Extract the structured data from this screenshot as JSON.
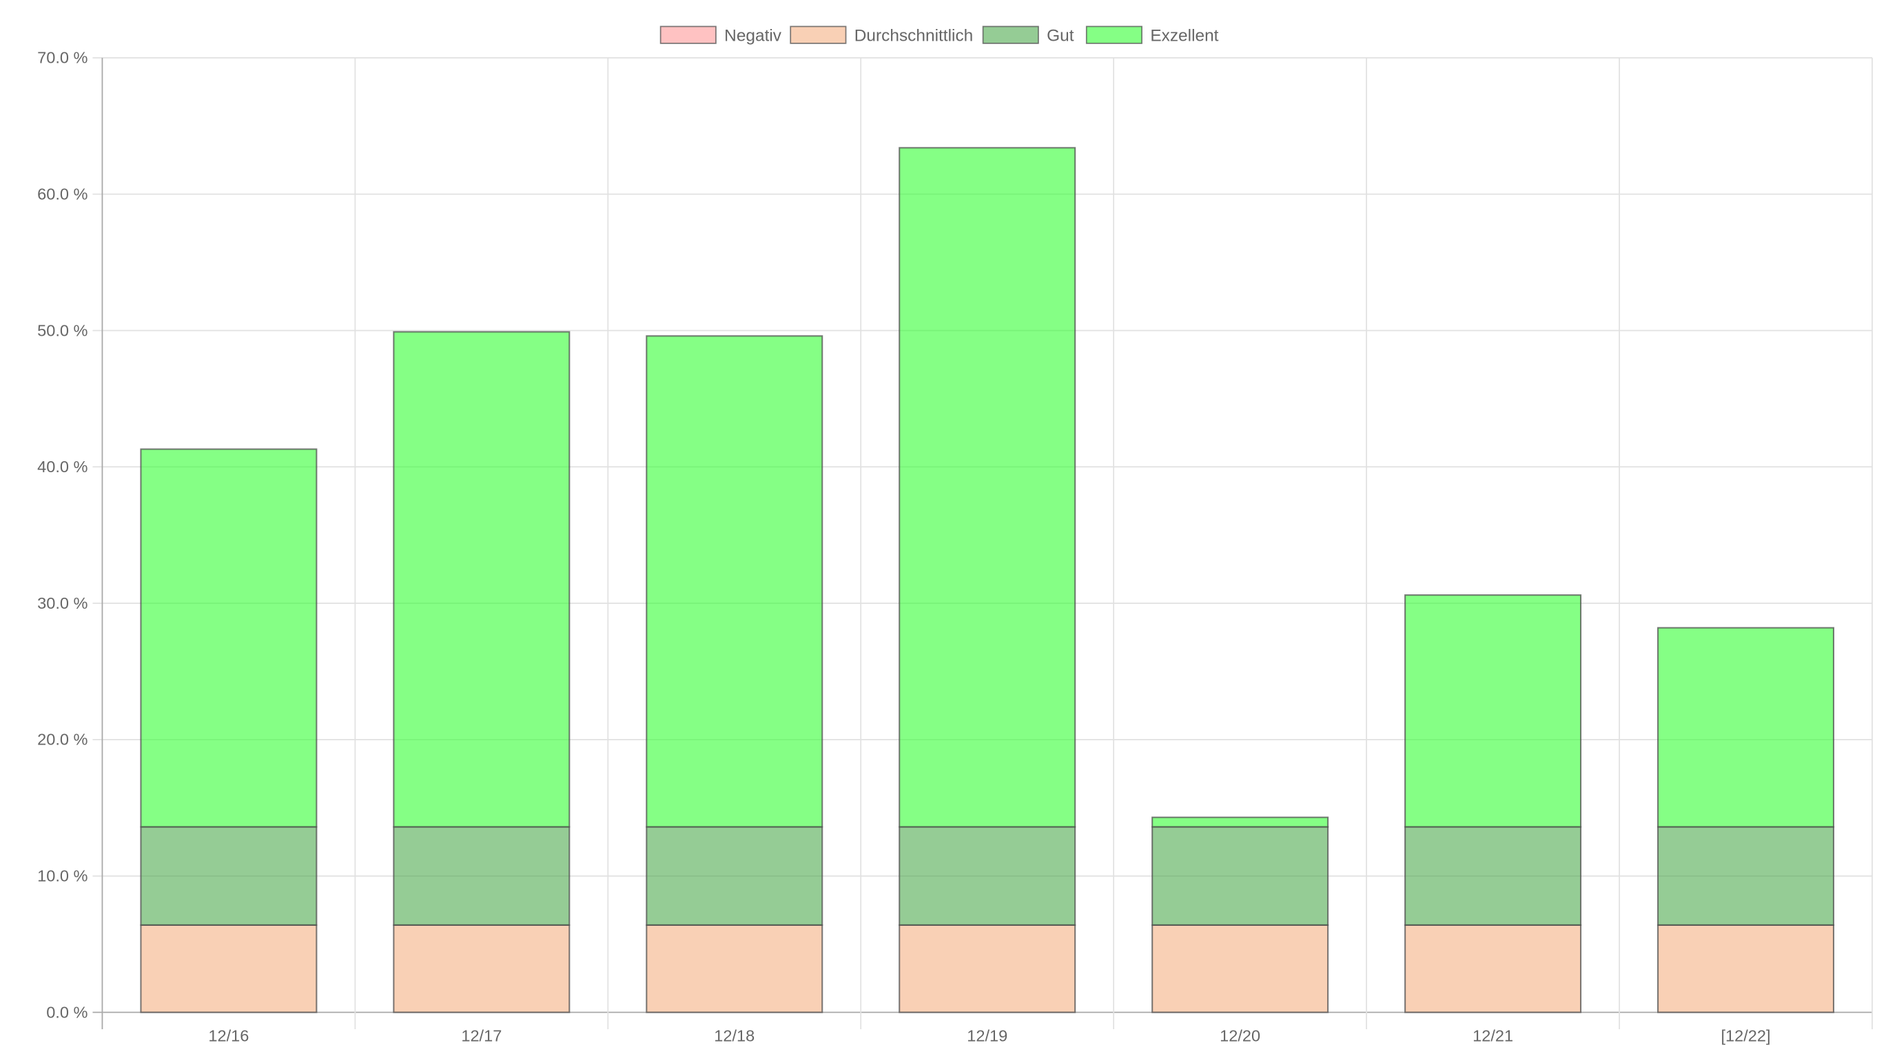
{
  "chart_data": {
    "type": "bar",
    "stacked": true,
    "categories": [
      "12/16",
      "12/17",
      "12/18",
      "12/19",
      "12/20",
      "12/21",
      "[12/22]"
    ],
    "series": [
      {
        "name": "Negativ",
        "color": "#ff9a9a",
        "values": [
          0,
          0,
          0,
          0,
          0,
          0,
          0
        ]
      },
      {
        "name": "Durchschnittlich",
        "color": "#f5b183",
        "values": [
          6.4,
          6.4,
          6.4,
          6.4,
          6.4,
          6.4,
          6.4
        ]
      },
      {
        "name": "Gut",
        "color": "#4faa4f",
        "values": [
          7.2,
          7.2,
          7.2,
          7.2,
          7.2,
          7.2,
          7.2
        ]
      },
      {
        "name": "Exzellent",
        "color": "#33ff33",
        "values": [
          27.7,
          36.3,
          36.0,
          49.8,
          0.7,
          17.0,
          14.6
        ]
      }
    ],
    "y_ticks": [
      "0.0 %",
      "10.0 %",
      "20.0 %",
      "30.0 %",
      "40.0 %",
      "50.0 %",
      "60.0 %",
      "70.0 %"
    ],
    "ylim": [
      0,
      70
    ],
    "y_unit": "%",
    "grid": true,
    "legend_position": "top-center",
    "title": "",
    "xlabel": "",
    "ylabel": ""
  }
}
